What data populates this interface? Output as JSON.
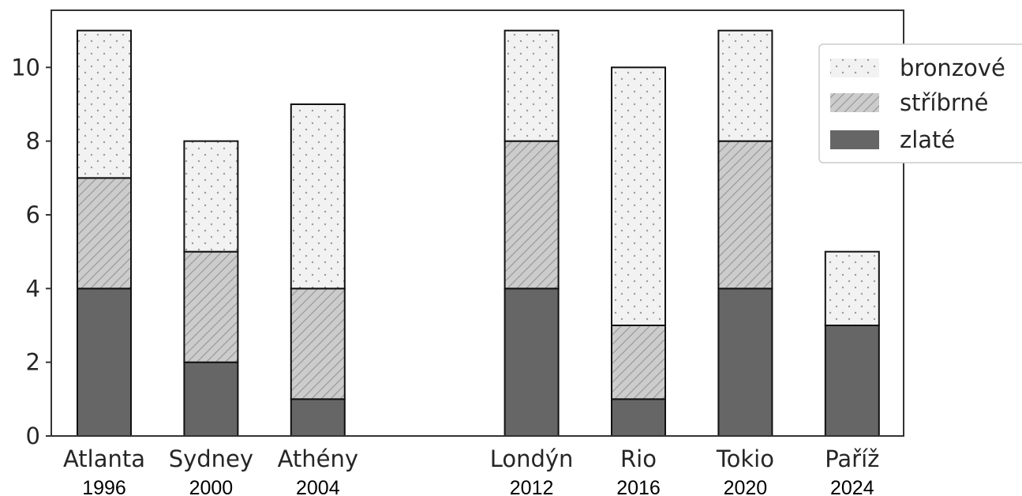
{
  "chart_data": {
    "type": "bar",
    "stacked": true,
    "categories": [
      {
        "name": "Atlanta",
        "year": "1996"
      },
      {
        "name": "Sydney",
        "year": "2000"
      },
      {
        "name": "Athény",
        "year": "2004"
      },
      {
        "name": "Londýn",
        "year": "2012"
      },
      {
        "name": "Rio",
        "year": "2016"
      },
      {
        "name": "Tokio",
        "year": "2020"
      },
      {
        "name": "Paříž",
        "year": "2024"
      }
    ],
    "slots": [
      0,
      1,
      2,
      4,
      5,
      6,
      7
    ],
    "series": [
      {
        "name": "zlaté",
        "values": [
          4,
          2,
          1,
          4,
          1,
          4,
          3
        ],
        "color": "#666666",
        "pattern": "solid"
      },
      {
        "name": "stříbrné",
        "values": [
          3,
          3,
          3,
          4,
          2,
          4,
          0
        ],
        "color": "#cccccc",
        "pattern": "hatch"
      },
      {
        "name": "bronzové",
        "values": [
          4,
          3,
          5,
          3,
          7,
          3,
          2
        ],
        "color": "#f2f2f2",
        "pattern": "dots"
      }
    ],
    "legend_order": [
      "bronzové",
      "stříbrné",
      "zlaté"
    ],
    "title": "",
    "xlabel": "",
    "ylabel": "",
    "ylim": [
      0,
      11.55
    ],
    "yticks": [
      0,
      2,
      4,
      6,
      8,
      10
    ],
    "grid": false,
    "legend_position": "upper-right-outside"
  }
}
